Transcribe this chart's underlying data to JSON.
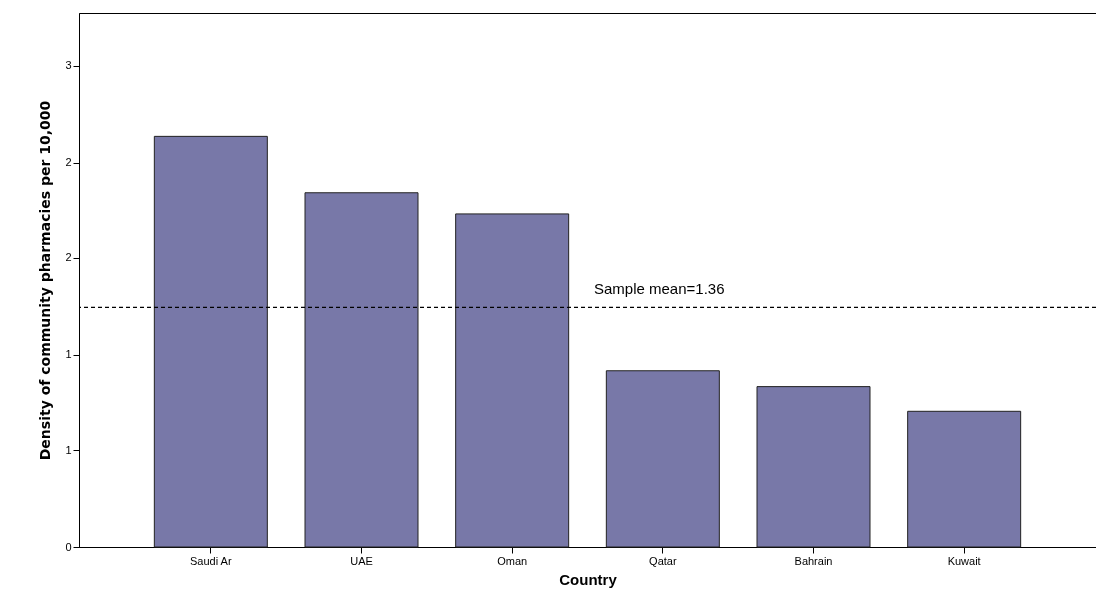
{
  "chart_data": {
    "type": "bar",
    "xlabel": "Country",
    "ylabel": "Density of community pharmacies per 10,000",
    "categories": [
      "Saudi Ar",
      "UAE",
      "Oman",
      "Qatar",
      "Bahrain",
      "Kuwait"
    ],
    "values": [
      2.33,
      2.01,
      1.89,
      1.0,
      0.91,
      0.77
    ],
    "color": "#7878a8",
    "ylim": [
      0,
      3.03
    ],
    "yticks": [
      {
        "value": 0,
        "label": "0"
      },
      {
        "value": 0.55,
        "label": "1"
      },
      {
        "value": 1.09,
        "label": "1"
      },
      {
        "value": 1.64,
        "label": "2"
      },
      {
        "value": 2.18,
        "label": "2"
      },
      {
        "value": 2.73,
        "label": "3"
      }
    ],
    "ref_lines": [
      {
        "axis": "y",
        "value": 1.36,
        "label": "Sample mean=1.36",
        "line_style": "dashed",
        "color": "#000000"
      }
    ],
    "grid": false
  }
}
